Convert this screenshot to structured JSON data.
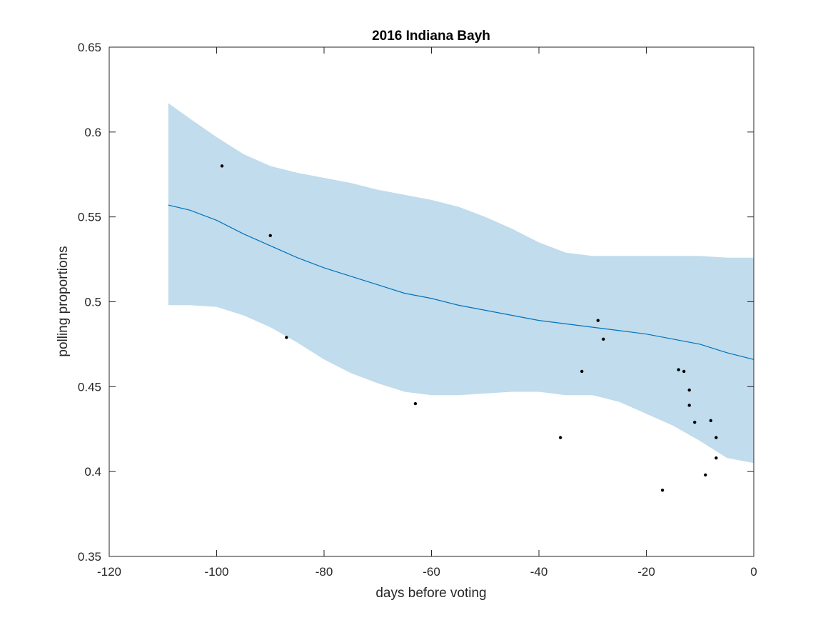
{
  "chart_data": {
    "type": "line",
    "title": "2016 Indiana Bayh",
    "xlabel": "days before voting",
    "ylabel": "polling proportions",
    "xlim": [
      -120,
      0
    ],
    "ylim": [
      0.35,
      0.65
    ],
    "xticks": [
      -120,
      -100,
      -80,
      -60,
      -40,
      -20,
      0
    ],
    "xtick_labels": [
      "-120",
      "-100",
      "-80",
      "-60",
      "-40",
      "-20",
      "0"
    ],
    "yticks": [
      0.35,
      0.4,
      0.45,
      0.5,
      0.55,
      0.6,
      0.65
    ],
    "ytick_labels": [
      "0.35",
      "0.4",
      "0.45",
      "0.5",
      "0.55",
      "0.6",
      "0.65"
    ],
    "grid": false,
    "box": true,
    "colors": {
      "band": "#c1dcec",
      "line": "#0072bd",
      "points": "#000000",
      "axes": "#262626"
    },
    "band": {
      "x": [
        -109,
        -105,
        -100,
        -95,
        -90,
        -85,
        -80,
        -75,
        -70,
        -65,
        -60,
        -55,
        -50,
        -45,
        -40,
        -35,
        -30,
        -25,
        -20,
        -15,
        -10,
        -5,
        0
      ],
      "upper": [
        0.617,
        0.608,
        0.597,
        0.587,
        0.58,
        0.576,
        0.573,
        0.57,
        0.566,
        0.563,
        0.56,
        0.556,
        0.55,
        0.543,
        0.535,
        0.529,
        0.527,
        0.527,
        0.527,
        0.527,
        0.527,
        0.526,
        0.526
      ],
      "lower": [
        0.498,
        0.498,
        0.497,
        0.492,
        0.485,
        0.476,
        0.466,
        0.458,
        0.452,
        0.447,
        0.445,
        0.445,
        0.446,
        0.447,
        0.447,
        0.445,
        0.445,
        0.441,
        0.434,
        0.427,
        0.418,
        0.408,
        0.405
      ]
    },
    "series": [
      {
        "x": [
          -109,
          -105,
          -100,
          -95,
          -90,
          -85,
          -80,
          -75,
          -70,
          -65,
          -60,
          -55,
          -50,
          -45,
          -40,
          -35,
          -30,
          -25,
          -20,
          -15,
          -10,
          -5,
          0
        ],
        "values": [
          0.557,
          0.554,
          0.548,
          0.54,
          0.533,
          0.526,
          0.52,
          0.515,
          0.51,
          0.505,
          0.502,
          0.498,
          0.495,
          0.492,
          0.489,
          0.487,
          0.485,
          0.483,
          0.481,
          0.478,
          0.475,
          0.47,
          0.466
        ]
      }
    ],
    "points": [
      {
        "x": -99,
        "y": 0.58
      },
      {
        "x": -90,
        "y": 0.539
      },
      {
        "x": -87,
        "y": 0.479
      },
      {
        "x": -63,
        "y": 0.44
      },
      {
        "x": -36,
        "y": 0.42
      },
      {
        "x": -32,
        "y": 0.459
      },
      {
        "x": -29,
        "y": 0.489
      },
      {
        "x": -28,
        "y": 0.478
      },
      {
        "x": -17,
        "y": 0.389
      },
      {
        "x": -14,
        "y": 0.46
      },
      {
        "x": -13,
        "y": 0.459
      },
      {
        "x": -12,
        "y": 0.448
      },
      {
        "x": -12,
        "y": 0.439
      },
      {
        "x": -11,
        "y": 0.429
      },
      {
        "x": -9,
        "y": 0.398
      },
      {
        "x": -8,
        "y": 0.43
      },
      {
        "x": -7,
        "y": 0.42
      },
      {
        "x": -7,
        "y": 0.408
      }
    ]
  }
}
